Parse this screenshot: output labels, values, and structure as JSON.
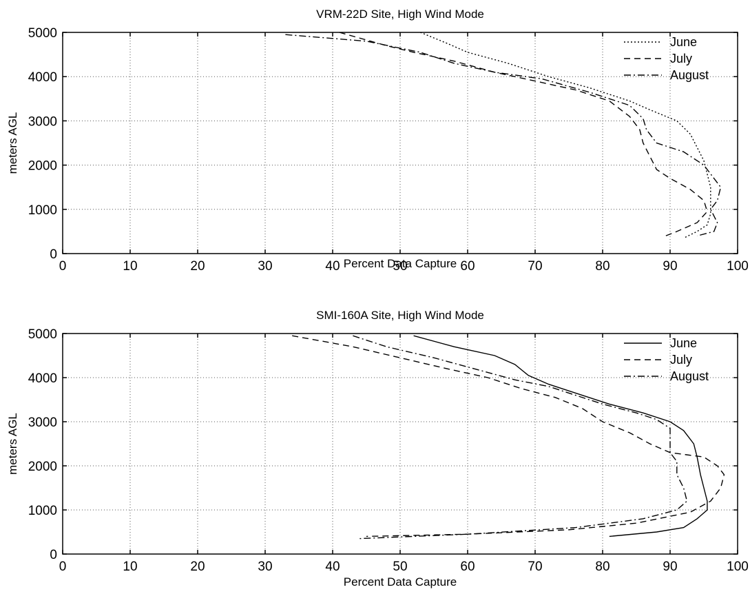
{
  "chart_data": [
    {
      "type": "line",
      "title": "VRM-22D Site, High Wind Mode",
      "xlabel": "Percent Data Capture",
      "ylabel": "meters AGL",
      "xlim": [
        0,
        100
      ],
      "ylim": [
        0,
        5000
      ],
      "xticks": [
        "0",
        "10",
        "20",
        "30",
        "40",
        "50",
        "60",
        "70",
        "80",
        "90",
        "100"
      ],
      "yticks": [
        "0",
        "1000",
        "2000",
        "3000",
        "4000",
        "5000"
      ],
      "grid": true,
      "legend_position": "top-right",
      "series": [
        {
          "name": "June",
          "style": "dotted",
          "points": [
            [
              53,
              5000
            ],
            [
              57,
              4750
            ],
            [
              60,
              4550
            ],
            [
              66,
              4300
            ],
            [
              72,
              4000
            ],
            [
              78,
              3750
            ],
            [
              84,
              3450
            ],
            [
              87,
              3250
            ],
            [
              91,
              3000
            ],
            [
              93,
              2700
            ],
            [
              94,
              2400
            ],
            [
              95,
              2100
            ],
            [
              95.5,
              1800
            ],
            [
              96,
              1500
            ],
            [
              96,
              1200
            ],
            [
              96,
              900
            ],
            [
              95.5,
              650
            ],
            [
              94,
              500
            ],
            [
              92,
              350
            ]
          ]
        },
        {
          "name": "July",
          "style": "dashed",
          "points": [
            [
              41,
              5000
            ],
            [
              48,
              4700
            ],
            [
              52,
              4550
            ],
            [
              58,
              4350
            ],
            [
              64,
              4100
            ],
            [
              70,
              3900
            ],
            [
              76,
              3700
            ],
            [
              81,
              3450
            ],
            [
              84,
              3100
            ],
            [
              85.5,
              2800
            ],
            [
              86,
              2500
            ],
            [
              87,
              2200
            ],
            [
              88,
              1900
            ],
            [
              90,
              1700
            ],
            [
              93,
              1450
            ],
            [
              95,
              1200
            ],
            [
              95.5,
              950
            ],
            [
              94,
              700
            ],
            [
              91,
              500
            ],
            [
              89,
              380
            ]
          ]
        },
        {
          "name": "August",
          "style": "dashdot",
          "points": [
            [
              33,
              4950
            ],
            [
              45,
              4800
            ],
            [
              53,
              4550
            ],
            [
              58,
              4300
            ],
            [
              64,
              4100
            ],
            [
              71,
              3950
            ],
            [
              78,
              3650
            ],
            [
              84,
              3350
            ],
            [
              86,
              3050
            ],
            [
              86.5,
              2800
            ],
            [
              88,
              2500
            ],
            [
              92,
              2300
            ],
            [
              95,
              2000
            ],
            [
              96,
              1800
            ],
            [
              97.5,
              1500
            ],
            [
              97,
              1200
            ],
            [
              96,
              1000
            ],
            [
              97,
              700
            ],
            [
              96.5,
              500
            ],
            [
              94,
              400
            ]
          ]
        }
      ]
    },
    {
      "type": "line",
      "title": "SMI-160A Site, High Wind Mode",
      "xlabel": "Percent Data Capture",
      "ylabel": "meters AGL",
      "xlim": [
        0,
        100
      ],
      "ylim": [
        0,
        5000
      ],
      "xticks": [
        "0",
        "10",
        "20",
        "30",
        "40",
        "50",
        "60",
        "70",
        "80",
        "90",
        "100"
      ],
      "yticks": [
        "0",
        "1000",
        "2000",
        "3000",
        "4000",
        "5000"
      ],
      "grid": true,
      "legend_position": "top-right",
      "series": [
        {
          "name": "June",
          "style": "solid",
          "points": [
            [
              52,
              4950
            ],
            [
              58,
              4700
            ],
            [
              64,
              4500
            ],
            [
              67,
              4300
            ],
            [
              69,
              4050
            ],
            [
              72,
              3850
            ],
            [
              76,
              3650
            ],
            [
              81,
              3400
            ],
            [
              86,
              3200
            ],
            [
              90,
              3000
            ],
            [
              92,
              2800
            ],
            [
              93.5,
              2500
            ],
            [
              94,
              2200
            ],
            [
              94.5,
              1800
            ],
            [
              95,
              1500
            ],
            [
              95.5,
              1200
            ],
            [
              95.5,
              1000
            ],
            [
              94,
              800
            ],
            [
              92,
              600
            ],
            [
              88,
              500
            ],
            [
              81,
              400
            ]
          ]
        },
        {
          "name": "July",
          "style": "dashed",
          "points": [
            [
              34,
              4950
            ],
            [
              43,
              4700
            ],
            [
              50,
              4450
            ],
            [
              57,
              4200
            ],
            [
              63,
              4000
            ],
            [
              68,
              3750
            ],
            [
              73,
              3550
            ],
            [
              77,
              3300
            ],
            [
              80,
              3000
            ],
            [
              84,
              2750
            ],
            [
              87,
              2500
            ],
            [
              90,
              2300
            ],
            [
              95,
              2200
            ],
            [
              97,
              2000
            ],
            [
              98,
              1800
            ],
            [
              97.5,
              1500
            ],
            [
              96,
              1200
            ],
            [
              93,
              950
            ],
            [
              85,
              700
            ],
            [
              75,
              550
            ],
            [
              60,
              450
            ],
            [
              45,
              400
            ]
          ]
        },
        {
          "name": "August",
          "style": "dashdot",
          "points": [
            [
              43,
              4950
            ],
            [
              48,
              4700
            ],
            [
              55,
              4450
            ],
            [
              61,
              4200
            ],
            [
              67,
              3950
            ],
            [
              72,
              3800
            ],
            [
              76,
              3600
            ],
            [
              80,
              3400
            ],
            [
              85,
              3200
            ],
            [
              88,
              3050
            ],
            [
              90,
              2850
            ],
            [
              90,
              2600
            ],
            [
              90,
              2300
            ],
            [
              91,
              2100
            ],
            [
              91,
              1800
            ],
            [
              92,
              1500
            ],
            [
              92.5,
              1200
            ],
            [
              91,
              1000
            ],
            [
              86,
              800
            ],
            [
              76,
              600
            ],
            [
              60,
              450
            ],
            [
              44,
              350
            ]
          ]
        }
      ]
    }
  ]
}
